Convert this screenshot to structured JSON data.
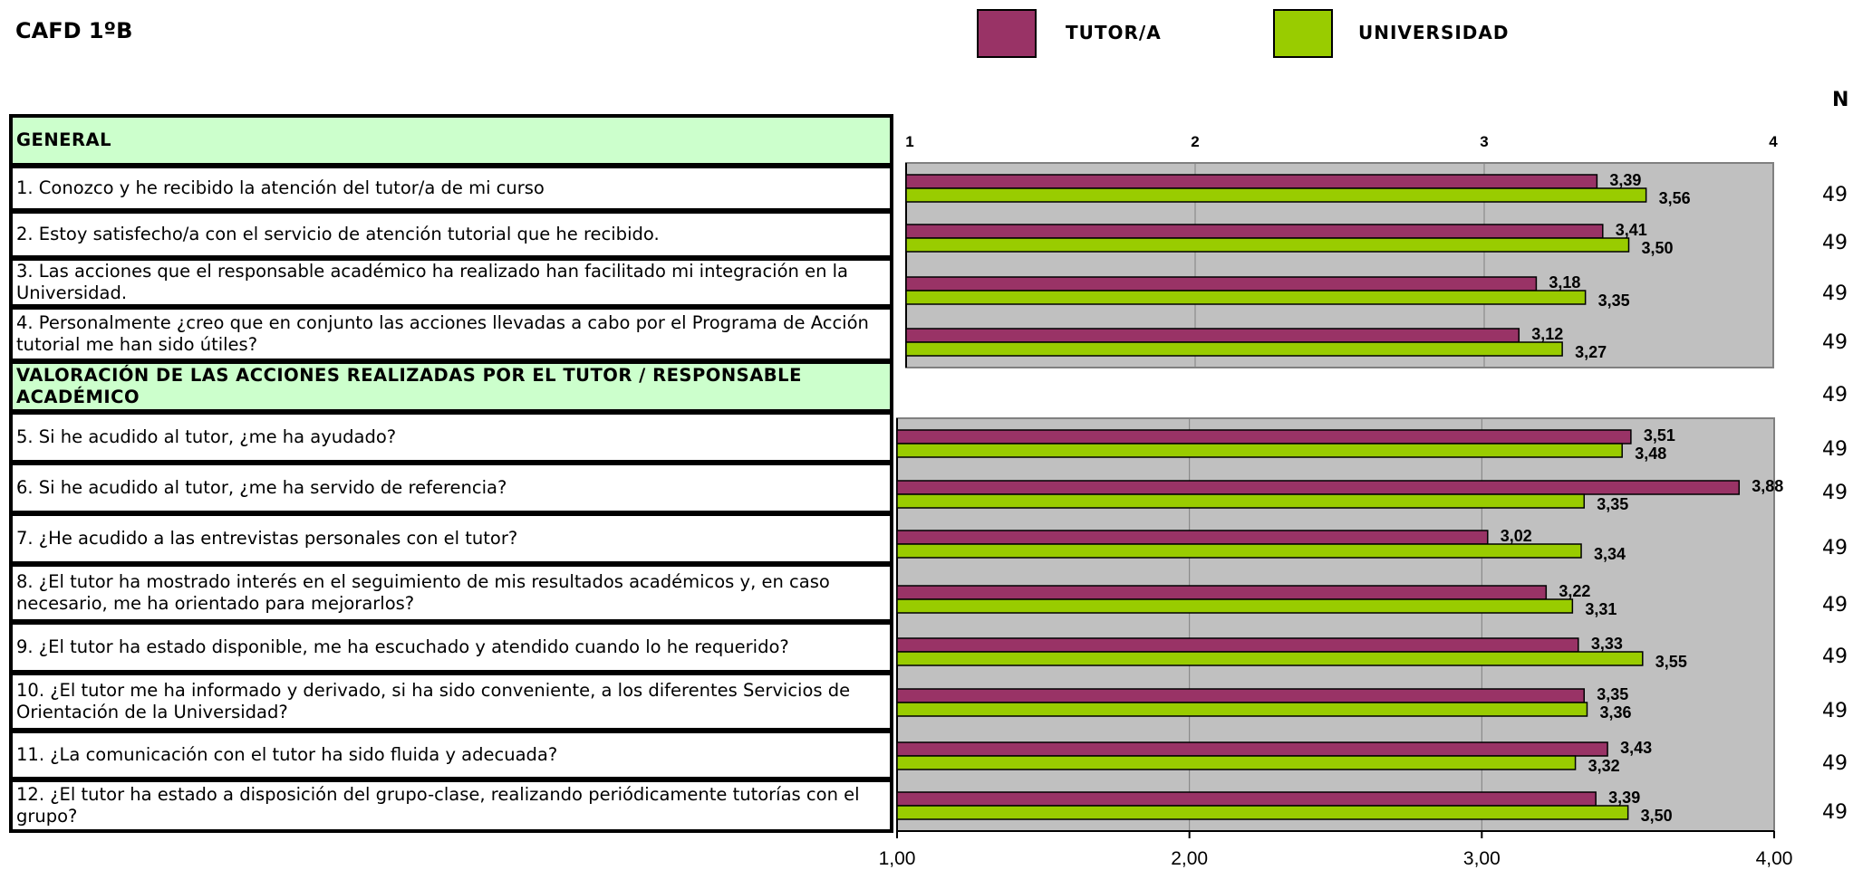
{
  "header": {
    "title": "CAFD 1ºB",
    "n_label": "N"
  },
  "legend": [
    {
      "label": "TUTOR/A",
      "color": "#993366"
    },
    {
      "label": "UNIVERSIDAD",
      "color": "#99cc00"
    }
  ],
  "table": {
    "rows": [
      {
        "text": "GENERAL",
        "header": true,
        "n": ""
      },
      {
        "text": "1. Conozco y he recibido la atención del tutor/a de mi curso",
        "header": false,
        "n": "49"
      },
      {
        "text": "2. Estoy satisfecho/a con el servicio de atención tutorial que he recibido.",
        "header": false,
        "n": "49"
      },
      {
        "text": "3. Las acciones que el responsable académico ha realizado han facilitado mi integración en la Universidad.",
        "header": false,
        "n": "49"
      },
      {
        "text": "4. Personalmente ¿creo que en conjunto  las acciones llevadas a cabo por el Programa de Acción tutorial me han sido útiles?",
        "header": false,
        "n": "49"
      },
      {
        "text": "VALORACIÓN DE LAS ACCIONES REALIZADAS POR EL TUTOR / RESPONSABLE ACADÉMICO",
        "header": true,
        "n": "49"
      },
      {
        "text": "5. Si he acudido al tutor, ¿me ha ayudado?",
        "header": false,
        "n": "49"
      },
      {
        "text": "6. Si he acudido al tutor, ¿me ha servido de referencia?",
        "header": false,
        "n": "49"
      },
      {
        "text": "7. ¿He acudido a las entrevistas personales con el tutor?",
        "header": false,
        "n": "49"
      },
      {
        "text": "8. ¿El tutor ha mostrado interés en el seguimiento de mis resultados académicos y, en caso necesario, me ha orientado para mejorarlos?",
        "header": false,
        "n": "49"
      },
      {
        "text": "9. ¿El tutor ha estado disponible, me ha escuchado y atendido cuando lo he requerido?",
        "header": false,
        "n": "49"
      },
      {
        "text": "10. ¿El tutor me ha informado y derivado, si ha sido conveniente, a los diferentes Servicios de Orientación de la Universidad?",
        "header": false,
        "n": "49"
      },
      {
        "text": "11. ¿La comunicación con el tutor ha sido fluida y adecuada?",
        "header": false,
        "n": "49"
      },
      {
        "text": "12. ¿El tutor ha estado a disposición del grupo-clase, realizando periódicamente tutorías con el grupo?",
        "header": false,
        "n": "49"
      }
    ]
  },
  "chart_data": [
    {
      "type": "bar",
      "orientation": "horizontal",
      "categories": [
        "1",
        "2",
        "3",
        "4"
      ],
      "series": [
        {
          "name": "TUTOR/A",
          "values": [
            3.39,
            3.41,
            3.18,
            3.12
          ],
          "labels": [
            "3,39",
            "3,41",
            "3,18",
            "3,12"
          ]
        },
        {
          "name": "UNIVERSIDAD",
          "values": [
            3.56,
            3.5,
            3.35,
            3.27
          ],
          "labels": [
            "3,56",
            "3,50",
            "3,35",
            "3,27"
          ]
        }
      ],
      "xlim": [
        1,
        4
      ],
      "tick_labels": [
        "1",
        "2",
        "3",
        "4"
      ],
      "axis_position": "top",
      "grid": true
    },
    {
      "type": "bar",
      "orientation": "horizontal",
      "categories": [
        "5",
        "6",
        "7",
        "8",
        "9",
        "10",
        "11",
        "12"
      ],
      "series": [
        {
          "name": "TUTOR/A",
          "values": [
            3.51,
            3.88,
            3.02,
            3.22,
            3.33,
            3.35,
            3.43,
            3.39
          ],
          "labels": [
            "3,51",
            "3,88",
            "3,02",
            "3,22",
            "3,33",
            "3,35",
            "3,43",
            "3,39"
          ]
        },
        {
          "name": "UNIVERSIDAD",
          "values": [
            3.48,
            3.35,
            3.34,
            3.31,
            3.55,
            3.36,
            3.32,
            3.5
          ],
          "labels": [
            "3,48",
            "3,35",
            "3,34",
            "3,31",
            "3,55",
            "3,36",
            "3,32",
            "3,50"
          ]
        }
      ],
      "xlim": [
        1,
        4
      ],
      "tick_labels": [
        "1,00",
        "2,00",
        "3,00",
        "4,00"
      ],
      "axis_position": "bottom",
      "grid": true
    }
  ]
}
